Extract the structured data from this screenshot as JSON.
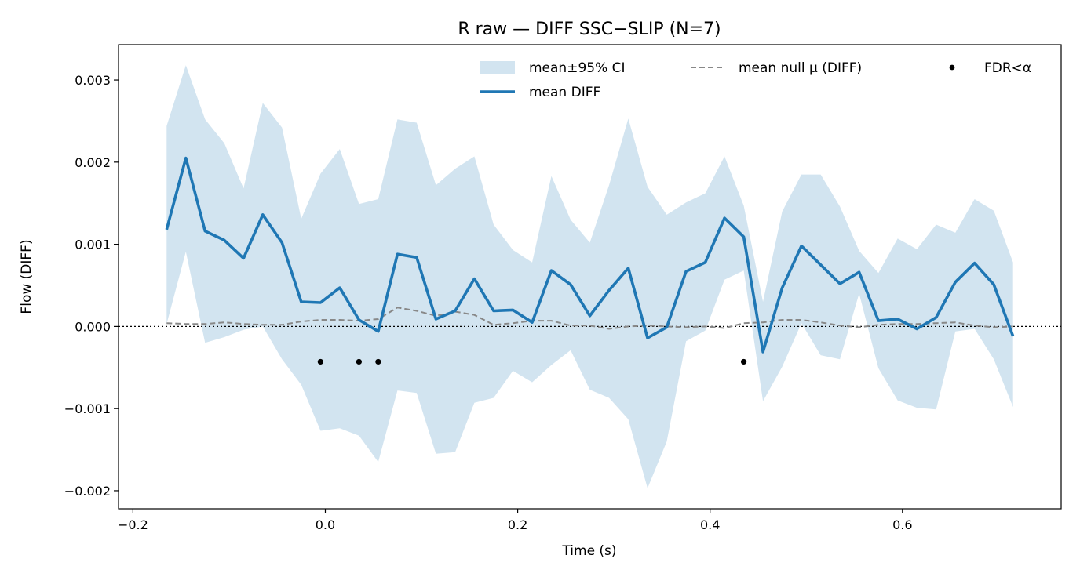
{
  "chart_data": {
    "type": "line",
    "title": "R raw — DIFF SSC−SLIP (N=7)",
    "xlabel": "Time (s)",
    "ylabel": "Flow (DIFF)",
    "xlim": [
      -0.215,
      0.765
    ],
    "ylim": [
      -0.00222,
      0.00343
    ],
    "xticks": [
      -0.2,
      0.0,
      0.2,
      0.4,
      0.6
    ],
    "xtick_labels": [
      "−0.2",
      "0.0",
      "0.2",
      "0.4",
      "0.6"
    ],
    "yticks": [
      -0.002,
      -0.001,
      0.0,
      0.001,
      0.002,
      0.003
    ],
    "ytick_labels": [
      "−0.002",
      "−0.001",
      "0.000",
      "0.001",
      "0.002",
      "0.003"
    ],
    "legend_position": "top-right",
    "grid": false,
    "x": [
      -0.165,
      -0.145,
      -0.125,
      -0.105,
      -0.085,
      -0.065,
      -0.045,
      -0.025,
      -0.005,
      0.015,
      0.035,
      0.055,
      0.075,
      0.095,
      0.115,
      0.135,
      0.155,
      0.175,
      0.195,
      0.215,
      0.235,
      0.255,
      0.275,
      0.295,
      0.315,
      0.335,
      0.355,
      0.375,
      0.395,
      0.415,
      0.435,
      0.455,
      0.475,
      0.495,
      0.515,
      0.535,
      0.555,
      0.575,
      0.595,
      0.615,
      0.635,
      0.655,
      0.675,
      0.695,
      0.715
    ],
    "series": [
      {
        "name": "mean DIFF",
        "color": "#1f77b4",
        "values": [
          0.00118,
          0.00205,
          0.00116,
          0.00105,
          0.00083,
          0.00136,
          0.00102,
          0.0003,
          0.00029,
          0.00047,
          8e-05,
          -6e-05,
          0.00088,
          0.00084,
          9e-05,
          0.00019,
          0.00058,
          0.00019,
          0.0002,
          5e-05,
          0.00068,
          0.00051,
          0.00013,
          0.00044,
          0.00071,
          -0.00014,
          -1e-05,
          0.00067,
          0.00078,
          0.00132,
          0.00109,
          -0.00031,
          0.00047,
          0.00098,
          0.00075,
          0.00052,
          0.00066,
          7e-05,
          9e-05,
          -3e-05,
          0.00011,
          0.00054,
          0.00077,
          0.00051,
          -0.00012
        ]
      },
      {
        "name": "mean±95% CI",
        "color": "#1f77b4",
        "upper": [
          0.00244,
          0.00318,
          0.00252,
          0.00223,
          0.00168,
          0.00272,
          0.00242,
          0.00131,
          0.00186,
          0.00216,
          0.00149,
          0.00155,
          0.00252,
          0.00248,
          0.00172,
          0.00192,
          0.00207,
          0.00124,
          0.00093,
          0.00078,
          0.00183,
          0.0013,
          0.00102,
          0.00172,
          0.00253,
          0.0017,
          0.00136,
          0.00151,
          0.00162,
          0.00207,
          0.00147,
          0.0003,
          0.0014,
          0.00185,
          0.00185,
          0.00146,
          0.00092,
          0.00065,
          0.00107,
          0.00094,
          0.00124,
          0.00114,
          0.00155,
          0.00141,
          0.00078
        ],
        "lower": [
          3e-05,
          0.00091,
          -0.0002,
          -0.00013,
          -4e-05,
          0.0,
          -0.0004,
          -0.00071,
          -0.00127,
          -0.00124,
          -0.00133,
          -0.00165,
          -0.00078,
          -0.00081,
          -0.00155,
          -0.00153,
          -0.00093,
          -0.00087,
          -0.00054,
          -0.00068,
          -0.00047,
          -0.00029,
          -0.00077,
          -0.00087,
          -0.00113,
          -0.00197,
          -0.0014,
          -0.00018,
          -5e-05,
          0.00057,
          0.00068,
          -0.00091,
          -0.00049,
          4e-05,
          -0.00035,
          -0.0004,
          0.0004,
          -0.00051,
          -0.0009,
          -0.00099,
          -0.00101,
          -6e-05,
          -3e-05,
          -0.0004,
          -0.00098
        ]
      },
      {
        "name": "mean null μ (DIFF)",
        "color": "#888888",
        "values": [
          4e-05,
          3e-05,
          3e-05,
          5e-05,
          3e-05,
          2e-05,
          2e-05,
          6e-05,
          8e-05,
          8e-05,
          7e-05,
          9e-05,
          0.00023,
          0.00019,
          0.00013,
          0.00018,
          0.00014,
          2e-05,
          4e-05,
          7e-05,
          7e-05,
          1e-05,
          1e-05,
          -3e-05,
          0.0,
          1e-05,
          0.0,
          -1e-05,
          0.0,
          -2e-05,
          4e-05,
          5e-05,
          8e-05,
          8e-05,
          5e-05,
          1e-05,
          -1e-05,
          2e-05,
          3e-05,
          3e-05,
          4e-05,
          5e-05,
          1e-05,
          -1e-05,
          0.0
        ]
      },
      {
        "name": "FDR<α",
        "color": "#000000",
        "x": [
          -0.005,
          0.035,
          0.055,
          0.435
        ],
        "values": [
          -0.00043,
          -0.00043,
          -0.00043,
          -0.00043
        ]
      }
    ]
  }
}
